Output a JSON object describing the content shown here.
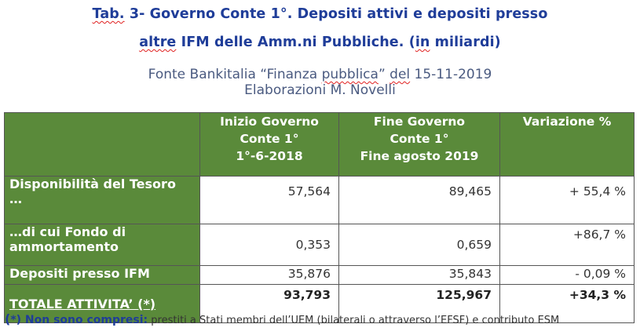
{
  "title": {
    "line1_tab": "Tab.",
    "line1_rest": " 3- Governo Conte 1°. Depositi attivi e depositi presso",
    "line2_altre": "altre",
    "line2_mid": " IFM delle Amm.ni Pubbliche. (",
    "line2_in": "in",
    "line2_end": " miliardi)"
  },
  "source": {
    "line1_a": "Fonte Bankitalia “Finanza ",
    "line1_pubblica": "pubblica",
    "line1_b": "”  ",
    "line1_del": "del",
    "line1_c": " 15-11-2019",
    "line2": "Elaborazioni M. Novelli"
  },
  "table": {
    "headers": [
      {
        "l1": "",
        "l2": "",
        "l3": ""
      },
      {
        "l1": "Inizio Governo",
        "l2": "Conte 1°",
        "l3": "1°-6-2018"
      },
      {
        "l1": "Fine Governo",
        "l2": "Conte 1°",
        "l3": "Fine agosto 2019"
      },
      {
        "l1": "Variazione %",
        "l2": "",
        "l3": ""
      }
    ],
    "rows": [
      {
        "label_l1": "Disponibilità del Tesoro",
        "label_l2": "…",
        "start": "57,564",
        "end": "89,465",
        "change": "+ 55,4 %"
      },
      {
        "label_l1": "…di cui Fondo di",
        "label_l2": "ammortamento",
        "start": "0,353",
        "end": "0,659",
        "change": "+86,7 %"
      },
      {
        "label_l1": "Depositi presso IFM",
        "label_l2": "",
        "start": "35,876",
        "end": "35,843",
        "change": "- 0,09 %"
      },
      {
        "label_l1": "TOTALE  ATTIVITA’ (*)",
        "label_l2": "",
        "start": "93,793",
        "end": "125,967",
        "change": "+34,3 %"
      }
    ]
  },
  "footnote": {
    "paren": "(",
    "bold": "*) Non sono compresi:",
    "rest": " prestiti a Stati membri dell’UEM (bilaterali o attraverso l’EFSF) e contributo ESM"
  },
  "colors": {
    "title": "#1f3d99",
    "header_green": "#5a8a3a",
    "source": "#4a5a80"
  }
}
